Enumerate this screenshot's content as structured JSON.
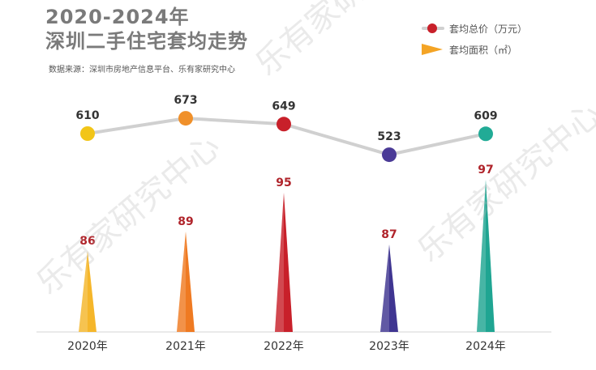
{
  "title": {
    "line1": "2020-2024年",
    "line2": "深圳二手住宅套均走势"
  },
  "source": "数据来源：深圳市房地产信息平台、乐有家研究中心",
  "legend": {
    "price_label": "套均总价（万元）",
    "area_label": "套均面积（㎡）"
  },
  "watermark": "乐有家研究中心",
  "colors": {
    "title": "#7a7a7a",
    "line": "#d0d0d0",
    "price_label": "#333333",
    "area_label": "#b0242b"
  },
  "chart_data": {
    "type": "line",
    "categories": [
      "2020年",
      "2021年",
      "2022年",
      "2023年",
      "2024年"
    ],
    "series": [
      {
        "name": "套均总价（万元）",
        "type": "line",
        "values": [
          610,
          673,
          649,
          523,
          609
        ],
        "colors": [
          "#f2c518",
          "#f0902a",
          "#c8202a",
          "#4a3a96",
          "#21ab96"
        ]
      },
      {
        "name": "套均面积（㎡）",
        "type": "triangle-bar",
        "values": [
          86,
          89,
          95,
          87,
          97
        ],
        "colors": [
          "#f5b62a",
          "#ef7a22",
          "#c8202a",
          "#3f3591",
          "#1fa592"
        ]
      }
    ]
  }
}
